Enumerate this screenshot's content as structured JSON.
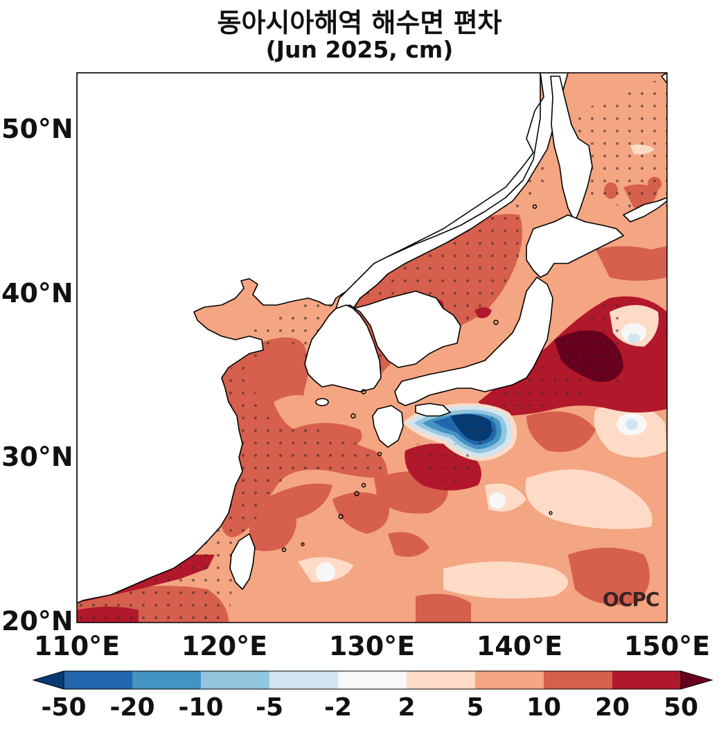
{
  "title": "동아시아해역 해수면 편차",
  "subtitle": "(Jun 2025, cm)",
  "logo_text": "OCPC",
  "lat_labels": [
    "50°N",
    "40°N",
    "30°N",
    "20°N"
  ],
  "lon_labels": [
    "110°E",
    "120°E",
    "130°E",
    "140°E",
    "150°E"
  ],
  "extent": {
    "lon": [
      110,
      150
    ],
    "lat": [
      20,
      53.5
    ]
  },
  "colorbar": {
    "labels": [
      "-50",
      "-20",
      "-10",
      "-5",
      "-2",
      "2",
      "5",
      "10",
      "20",
      "50"
    ],
    "colors": [
      "#063a73",
      "#2166ac",
      "#4393c3",
      "#92c5de",
      "#d1e5f0",
      "#f7f7f7",
      "#fddbc7",
      "#f4a582",
      "#d6604d",
      "#b2182b",
      "#67001f"
    ]
  }
}
